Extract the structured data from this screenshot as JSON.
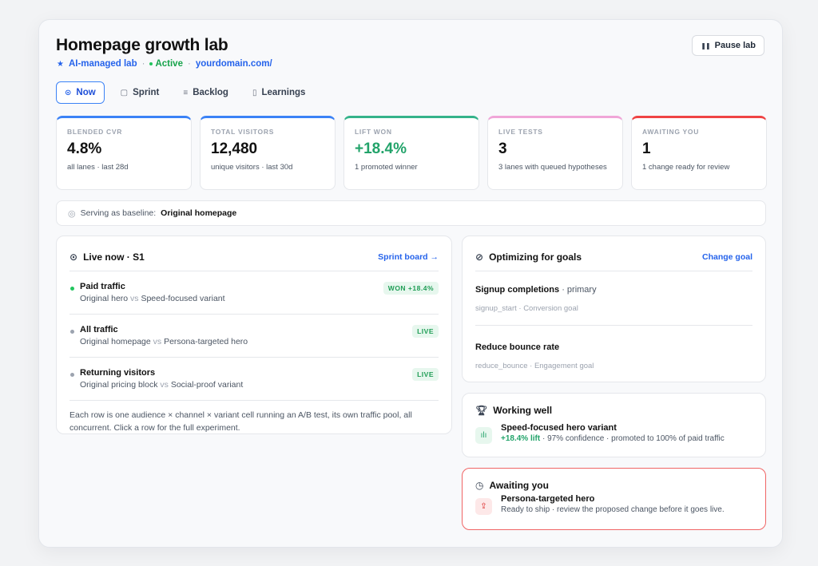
{
  "header": {
    "title": "Homepage growth lab",
    "badge": "AI-managed lab",
    "status": "Active",
    "domain": "yourdomain.com/",
    "pause_label": "Pause lab"
  },
  "tabs": [
    {
      "label": "Now",
      "icon": "target-icon",
      "active": true
    },
    {
      "label": "Sprint",
      "icon": "square-icon",
      "active": false
    },
    {
      "label": "Backlog",
      "icon": "lines-icon",
      "active": false
    },
    {
      "label": "Learnings",
      "icon": "page-icon",
      "active": false
    }
  ],
  "stats": [
    {
      "label": "BLENDED CVR",
      "value": "4.8%",
      "sub": "all lanes · last 28d",
      "color": "#3b82f6"
    },
    {
      "label": "TOTAL VISITORS",
      "value": "12,480",
      "sub": "unique visitors · last 30d",
      "color": "#3b82f6"
    },
    {
      "label": "LIFT WON",
      "value": "+18.4%",
      "sub": "1 promoted winner",
      "color": "#34b38a"
    },
    {
      "label": "LIVE TESTS",
      "value": "3",
      "sub": "3 lanes with queued hypotheses",
      "color": "#f0a6d8"
    },
    {
      "label": "AWAITING YOU",
      "value": "1",
      "sub": "1 change ready for review",
      "color": "#ef4444"
    }
  ],
  "baseline": {
    "label": "Serving as baseline:",
    "value": "Original homepage"
  },
  "live": {
    "title": "Live now · S1",
    "link": "Sprint board →",
    "vs": "vs",
    "rows": [
      {
        "title": "Paid traffic",
        "a": "Original hero",
        "b": "Speed-focused variant",
        "badge": "WON +18.4%"
      },
      {
        "title": "All traffic",
        "a": "Original homepage",
        "b": "Persona-targeted hero",
        "badge": "LIVE"
      },
      {
        "title": "Returning visitors",
        "a": "Original pricing block",
        "b": "Social-proof variant",
        "badge": "LIVE"
      }
    ],
    "footer": "Each row is one audience × channel × variant cell running an A/B test, its own traffic pool, all concurrent. Click a row for the full experiment."
  },
  "goals": {
    "title": "Optimizing for goals",
    "link": "Change goal",
    "items": [
      {
        "title": "Signup completions",
        "tag": "· primary",
        "sub": "signup_start · Conversion goal"
      },
      {
        "title": "Reduce bounce rate",
        "tag": "",
        "sub": "reduce_bounce · Engagement goal"
      }
    ]
  },
  "working": {
    "title": "Working well",
    "item_title": "Speed-focused hero variant",
    "lift": "+18.4% lift",
    "detail": " · 97% confidence · promoted to 100% of paid traffic"
  },
  "awaiting": {
    "title": "Awaiting you",
    "item_title": "Persona-targeted hero",
    "detail": "Ready to ship · review the proposed change before it goes live."
  }
}
